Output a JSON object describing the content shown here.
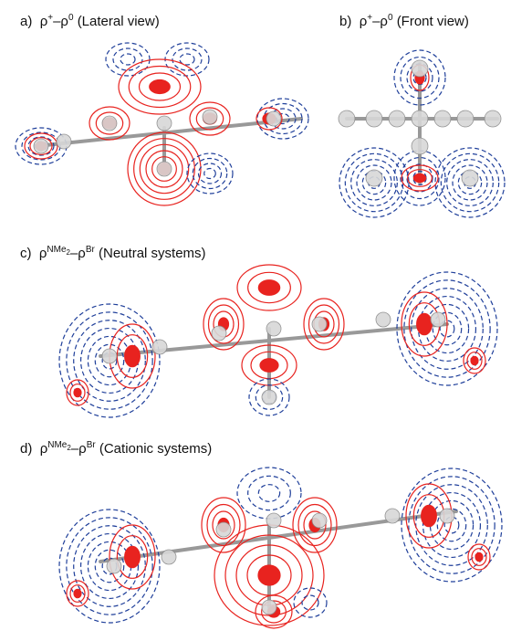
{
  "panels": [
    {
      "label": "a)",
      "rho1": "ρ",
      "sup1": "+",
      "sep": "–ρ",
      "sup2": "0",
      "note": "(Lateral view)"
    },
    {
      "label": "b)",
      "rho1": "ρ",
      "sup1": "+",
      "sep": "–ρ",
      "sup2": "0",
      "note": "(Front view)"
    },
    {
      "label": "c)",
      "rho1": "ρ",
      "sup1": "NMe",
      "sup1_sub": "2",
      "sep": "–ρ",
      "sup2": "Br",
      "note": "(Neutral systems)"
    },
    {
      "label": "d)",
      "rho1": "ρ",
      "sup1": "NMe",
      "sup1_sub": "2",
      "sep": "–ρ",
      "sup2": "Br",
      "note": "(Cationic systems)"
    }
  ]
}
